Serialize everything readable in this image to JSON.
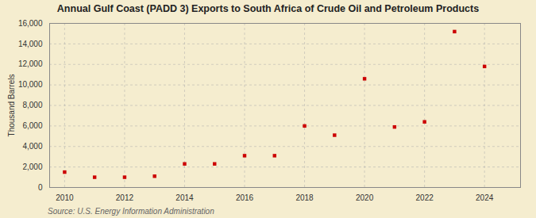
{
  "chart_data": {
    "type": "scatter",
    "title": "Annual Gulf Coast (PADD 3) Exports to South Africa of Crude Oil and Petroleum Products",
    "ylabel": "Thousand Barrels",
    "annotations": [
      "Source: U.S. Energy Information Administration"
    ],
    "x": [
      2010,
      2011,
      2012,
      2013,
      2014,
      2015,
      2016,
      2017,
      2018,
      2019,
      2020,
      2021,
      2022,
      2023,
      2024
    ],
    "values": [
      1500,
      1000,
      1000,
      1100,
      2300,
      2300,
      3100,
      3100,
      6000,
      5100,
      10600,
      5900,
      6400,
      15200,
      11800
    ],
    "color": "#CC0000",
    "marker": "square",
    "xlim": [
      2009.5,
      2025.2
    ],
    "xticks": [
      2010,
      2012,
      2014,
      2016,
      2018,
      2020,
      2022,
      2024
    ],
    "ylim": [
      0,
      16000
    ],
    "yticks": [
      0,
      {
        "value": 2000,
        "label": "2,000"
      },
      {
        "value": 4000,
        "label": "4,000"
      },
      {
        "value": 6000,
        "label": "6,000"
      },
      {
        "value": 8000,
        "label": "8,000"
      },
      {
        "value": 10000,
        "label": "10,000"
      },
      {
        "value": 12000,
        "label": "12,000"
      },
      {
        "value": 14000,
        "label": "14,000"
      },
      {
        "value": 16000,
        "label": "16,000"
      }
    ],
    "grid": true
  }
}
